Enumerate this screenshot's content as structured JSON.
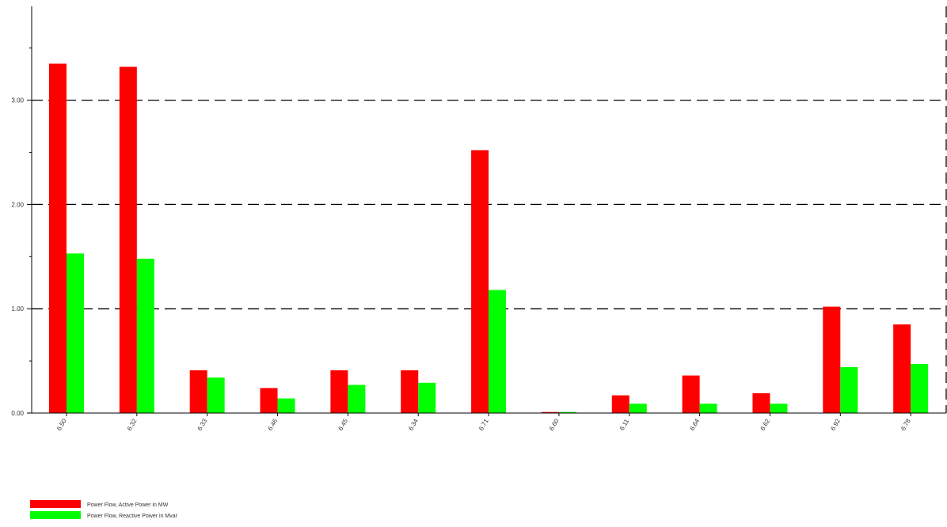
{
  "chart_data": {
    "type": "bar",
    "categories": [
      "6.50",
      "6.32",
      "6.33",
      "6.46",
      "6.45",
      "6.34",
      "6.71",
      "6.60",
      "6.11",
      "6.64",
      "6.62",
      "6.92",
      "6.78"
    ],
    "series": [
      {
        "name": "Power Flow, Active Power in MW",
        "color": "#ff0000",
        "values": [
          3.35,
          3.32,
          0.41,
          0.24,
          0.41,
          0.41,
          2.52,
          0.01,
          0.17,
          0.36,
          0.19,
          1.02,
          0.85
        ]
      },
      {
        "name": "Power Flow, Reactive Power in Mvar",
        "color": "#00ff00",
        "values": [
          1.53,
          1.48,
          0.34,
          0.14,
          0.27,
          0.29,
          1.18,
          0.01,
          0.09,
          0.09,
          0.09,
          0.44,
          0.47
        ]
      }
    ],
    "ylim": [
      0,
      3.9
    ],
    "yticks": [
      0,
      1,
      2,
      3
    ],
    "ytick_labels": [
      "0.00",
      "1.00",
      "2.00",
      "3.00"
    ],
    "grid": "horizontal-dashed",
    "legend_position": "bottom-left"
  }
}
